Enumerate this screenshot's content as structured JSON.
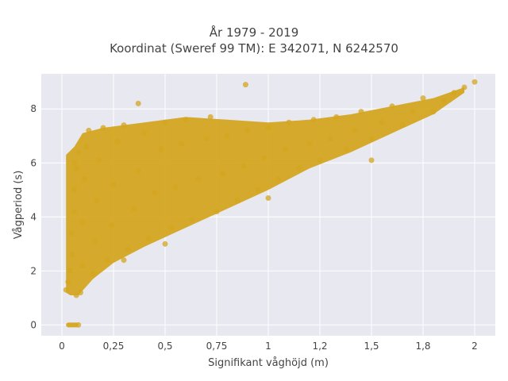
{
  "chart_data": {
    "type": "scatter",
    "title_lines": [
      "År 1979 - 2019",
      "Koordinat (Sweref 99 TM): E 342071, N 6242570"
    ],
    "xlabel": "Signifikant våghöjd (m)",
    "ylabel": "Vågperiod (s)",
    "xlim": [
      -0.1,
      2.1
    ],
    "ylim": [
      -0.4,
      9.3
    ],
    "x_ticks": [
      0,
      0.25,
      0.5,
      0.75,
      1,
      1.25,
      1.5,
      1.75,
      2
    ],
    "x_tick_labels": [
      "0",
      "0,25",
      "0,5",
      "0,75",
      "1",
      "1,2",
      "1,5",
      "1,8",
      "2"
    ],
    "y_ticks": [
      0,
      2,
      4,
      6,
      8
    ],
    "y_tick_labels": [
      "0",
      "2",
      "4",
      "6",
      "8"
    ],
    "grid": true,
    "marker_color": "#D4A520",
    "plot_background": "#E8E8F0",
    "points": [
      {
        "x": 0.02,
        "y": 1.3
      },
      {
        "x": 0.03,
        "y": 1.6
      },
      {
        "x": 0.04,
        "y": 2.0
      },
      {
        "x": 0.05,
        "y": 2.6
      },
      {
        "x": 0.05,
        "y": 3.4
      },
      {
        "x": 0.06,
        "y": 4.2
      },
      {
        "x": 0.06,
        "y": 5.0
      },
      {
        "x": 0.07,
        "y": 5.8
      },
      {
        "x": 0.08,
        "y": 6.4
      },
      {
        "x": 0.09,
        "y": 1.2
      },
      {
        "x": 0.1,
        "y": 2.2
      },
      {
        "x": 0.1,
        "y": 3.8
      },
      {
        "x": 0.11,
        "y": 5.4
      },
      {
        "x": 0.12,
        "y": 6.6
      },
      {
        "x": 0.13,
        "y": 7.2
      },
      {
        "x": 0.15,
        "y": 1.9
      },
      {
        "x": 0.16,
        "y": 3.1
      },
      {
        "x": 0.17,
        "y": 4.6
      },
      {
        "x": 0.18,
        "y": 6.1
      },
      {
        "x": 0.2,
        "y": 7.3
      },
      {
        "x": 0.22,
        "y": 2.4
      },
      {
        "x": 0.24,
        "y": 3.7
      },
      {
        "x": 0.25,
        "y": 5.2
      },
      {
        "x": 0.27,
        "y": 6.8
      },
      {
        "x": 0.3,
        "y": 7.4
      },
      {
        "x": 0.32,
        "y": 2.8
      },
      {
        "x": 0.35,
        "y": 4.3
      },
      {
        "x": 0.37,
        "y": 5.7
      },
      {
        "x": 0.4,
        "y": 7.1
      },
      {
        "x": 0.42,
        "y": 3.2
      },
      {
        "x": 0.45,
        "y": 4.9
      },
      {
        "x": 0.48,
        "y": 6.5
      },
      {
        "x": 0.5,
        "y": 7.5
      },
      {
        "x": 0.53,
        "y": 3.6
      },
      {
        "x": 0.55,
        "y": 5.1
      },
      {
        "x": 0.58,
        "y": 6.7
      },
      {
        "x": 0.6,
        "y": 7.6
      },
      {
        "x": 0.63,
        "y": 3.9
      },
      {
        "x": 0.66,
        "y": 5.4
      },
      {
        "x": 0.7,
        "y": 6.9
      },
      {
        "x": 0.72,
        "y": 7.7
      },
      {
        "x": 0.75,
        "y": 4.2
      },
      {
        "x": 0.78,
        "y": 5.6
      },
      {
        "x": 0.8,
        "y": 7.0
      },
      {
        "x": 0.85,
        "y": 4.6
      },
      {
        "x": 0.88,
        "y": 5.9
      },
      {
        "x": 0.9,
        "y": 7.2
      },
      {
        "x": 0.95,
        "y": 5.0
      },
      {
        "x": 0.98,
        "y": 6.2
      },
      {
        "x": 1.0,
        "y": 7.3
      },
      {
        "x": 1.05,
        "y": 5.4
      },
      {
        "x": 1.08,
        "y": 6.5
      },
      {
        "x": 1.1,
        "y": 7.5
      },
      {
        "x": 1.15,
        "y": 5.8
      },
      {
        "x": 1.2,
        "y": 6.7
      },
      {
        "x": 1.22,
        "y": 7.6
      },
      {
        "x": 1.25,
        "y": 6.1
      },
      {
        "x": 1.3,
        "y": 6.9
      },
      {
        "x": 1.33,
        "y": 7.7
      },
      {
        "x": 1.38,
        "y": 6.5
      },
      {
        "x": 1.42,
        "y": 7.2
      },
      {
        "x": 1.45,
        "y": 7.9
      },
      {
        "x": 1.5,
        "y": 6.9
      },
      {
        "x": 1.55,
        "y": 7.5
      },
      {
        "x": 1.6,
        "y": 8.1
      },
      {
        "x": 1.65,
        "y": 7.4
      },
      {
        "x": 1.7,
        "y": 7.9
      },
      {
        "x": 1.75,
        "y": 8.4
      },
      {
        "x": 1.8,
        "y": 7.9
      },
      {
        "x": 1.85,
        "y": 8.3
      },
      {
        "x": 1.9,
        "y": 8.6
      },
      {
        "x": 1.95,
        "y": 8.8
      },
      {
        "x": 2.0,
        "y": 9.0
      },
      {
        "x": 0.89,
        "y": 8.9
      },
      {
        "x": 0.37,
        "y": 8.2
      },
      {
        "x": 0.08,
        "y": 0.0
      },
      {
        "x": 0.07,
        "y": 1.1
      },
      {
        "x": 0.06,
        "y": 6.0
      },
      {
        "x": 0.5,
        "y": 3.0
      },
      {
        "x": 1.0,
        "y": 4.7
      },
      {
        "x": 1.5,
        "y": 6.1
      },
      {
        "x": 0.3,
        "y": 2.4
      }
    ],
    "zero_band_x_range": [
      0.02,
      0.08
    ]
  }
}
